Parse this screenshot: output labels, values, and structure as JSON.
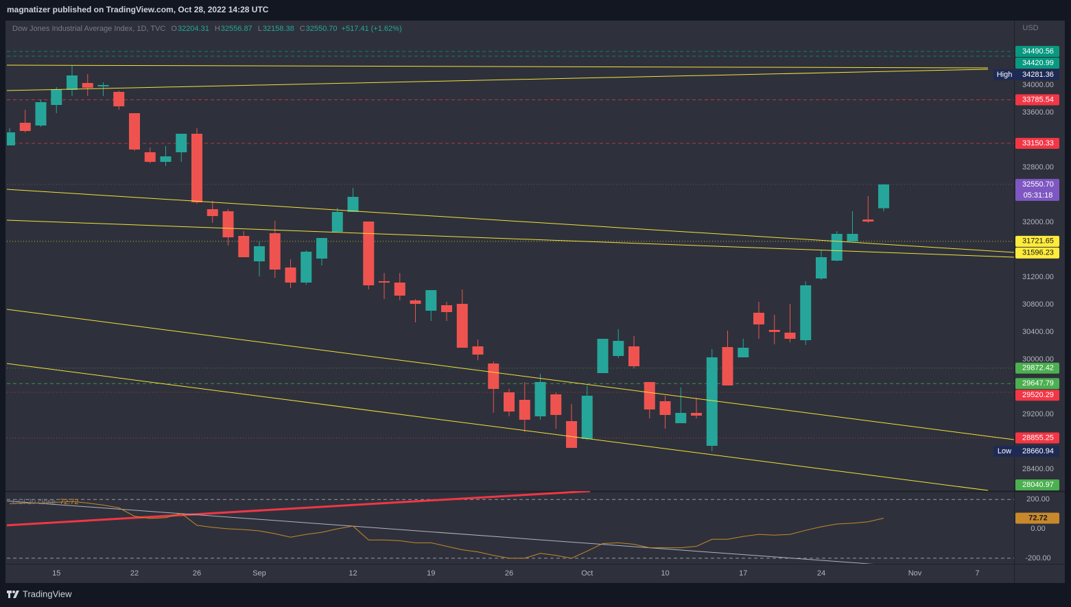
{
  "header": "magnatizer published on TradingView.com, Oct 28, 2022 14:28 UTC",
  "footer": "TradingView",
  "chart_data": [
    {
      "type": "candlestick",
      "title": "Dow Jones Industrial Average Index, 1D, TVC",
      "currency": "USD",
      "legend": [
        {
          "key": "O",
          "value": 32204.31
        },
        {
          "key": "H",
          "value": 32556.87
        },
        {
          "key": "L",
          "value": 32158.38
        },
        {
          "key": "C",
          "value": 32550.7,
          "label": "32550.70"
        }
      ],
      "change": {
        "value": 517.41,
        "label": "+517.41 (+1.62%)"
      },
      "categories": [
        null,
        null,
        null,
        "15",
        null,
        null,
        null,
        null,
        "22",
        null,
        null,
        null,
        "26",
        null,
        null,
        null,
        "Sep",
        null,
        null,
        null,
        null,
        null,
        "12",
        null,
        null,
        null,
        null,
        "19",
        null,
        null,
        null,
        null,
        "26",
        null,
        null,
        null,
        null,
        "Oct",
        null,
        null,
        null,
        null,
        "10",
        null,
        null,
        null,
        null,
        "17",
        null,
        null,
        null,
        null,
        "24",
        null,
        null,
        null,
        null,
        null,
        "Nov",
        null,
        null,
        null,
        "7"
      ],
      "open": [
        33120,
        33450,
        33410,
        33710,
        33930,
        34030,
        33980,
        33900,
        33590,
        33020,
        32880,
        33020,
        33290,
        32190,
        32160,
        31800,
        31430,
        31840,
        31340,
        31120,
        31470,
        31860,
        32150,
        32010,
        31140,
        31120,
        30860,
        30710,
        30790,
        30810,
        30190,
        29940,
        29520,
        29410,
        29170,
        29490,
        29100,
        28840,
        29800,
        30050,
        30190,
        29670,
        29390,
        29070,
        29220,
        28740,
        30180,
        30030,
        30680,
        30430,
        30390,
        30280,
        31180,
        31440,
        31720,
        32040,
        32204.31,
        null,
        null,
        null,
        null,
        null,
        null
      ],
      "high": [
        33370,
        33640,
        33790,
        33970,
        34281.36,
        34160,
        34040,
        33920,
        33590,
        33090,
        33110,
        33290,
        33370,
        32310,
        32190,
        31870,
        31720,
        32020,
        31460,
        31590,
        31770,
        32210,
        32500,
        32010,
        31260,
        31260,
        30880,
        31010,
        30840,
        31020,
        30290,
        29970,
        29570,
        29670,
        29790,
        29520,
        29350,
        29620,
        30300,
        30440,
        30340,
        29670,
        29470,
        29590,
        29440,
        30150,
        30420,
        30300,
        30840,
        30650,
        30810,
        31140,
        31590,
        31870,
        32160,
        32380,
        32556.87,
        null,
        null,
        null,
        null,
        null,
        null
      ],
      "low": [
        33120,
        33310,
        33390,
        33590,
        33840,
        33840,
        33840,
        33640,
        33040,
        32860,
        32820,
        32880,
        32270,
        31990,
        31660,
        31490,
        31210,
        31190,
        31040,
        31090,
        31370,
        31860,
        32150,
        31020,
        30880,
        30860,
        30540,
        30560,
        30560,
        30170,
        29990,
        29220,
        29170,
        28940,
        29120,
        28990,
        28710,
        28820,
        29800,
        30020,
        29870,
        29140,
        28990,
        29070,
        29140,
        28660.94,
        29620,
        30030,
        30300,
        30220,
        30250,
        30210,
        31160,
        31430,
        31720,
        31990,
        32158.38,
        null,
        null,
        null,
        null,
        null,
        null
      ],
      "close": [
        33310,
        33330,
        33750,
        33930,
        34140,
        33960,
        34000,
        33690,
        33060,
        32880,
        32960,
        33290,
        32290,
        32090,
        31780,
        31490,
        31650,
        31310,
        31120,
        31570,
        31770,
        32150,
        32370,
        31080,
        31120,
        30930,
        30810,
        31010,
        30690,
        30170,
        30070,
        29570,
        29240,
        29120,
        29670,
        29190,
        28710,
        29470,
        30300,
        30270,
        29900,
        29270,
        29190,
        29220,
        29180,
        30030,
        29620,
        30170,
        30510,
        30400,
        30300,
        31080,
        31490,
        31830,
        31830,
        32010,
        32550.7,
        null,
        null,
        null,
        null,
        null,
        null
      ],
      "up_color": "#26a69a",
      "down_color": "#ef5350",
      "ylim": [
        28080,
        34940
      ],
      "yticks": [
        {
          "value": 28400,
          "label": "28400.00"
        },
        {
          "value": 29200,
          "label": "29200.00"
        },
        {
          "value": 30000,
          "label": "30000.00"
        },
        {
          "value": 30400,
          "label": "30400.00"
        },
        {
          "value": 30800,
          "label": "30800.00"
        },
        {
          "value": 31200,
          "label": "31200.00"
        },
        {
          "value": 32000,
          "label": "32000.00"
        },
        {
          "value": 32800,
          "label": "32800.00"
        },
        {
          "value": 33600,
          "label": "33600.00"
        },
        {
          "value": 34000,
          "label": "34000.00"
        }
      ],
      "levels": [
        {
          "value": 34490.56,
          "color": "#089981",
          "line": "dashed"
        },
        {
          "value": 34420.99,
          "color": "#089981",
          "line": "dashed"
        },
        {
          "value": 34281.36,
          "color": "#1e2a54",
          "line": "none",
          "tag": "High"
        },
        {
          "value": 33785.54,
          "color": "#f23645",
          "line": "dashed"
        },
        {
          "value": 33150.33,
          "color": "#f23645",
          "line": "dashed"
        },
        {
          "value": 32550.7,
          "label": "32550.70",
          "color": "#7e57c2",
          "line": "dotted",
          "countdown": "05:31:18"
        },
        {
          "value": 31721.65,
          "color": "#ffeb3b",
          "text_color": "#131722",
          "line": "dotted"
        },
        {
          "value": 31596.23,
          "color": "#ffeb3b",
          "text_color": "#131722",
          "line": "none"
        },
        {
          "value": 29872.42,
          "color": "#4caf50",
          "line": "dotted"
        },
        {
          "value": 29647.79,
          "color": "#4caf50",
          "line": "dashed"
        },
        {
          "value": 29520.29,
          "color": "#f23645",
          "line": "dotted"
        },
        {
          "value": 28855.25,
          "color": "#f23645",
          "line": "dotted"
        },
        {
          "value": 28660.94,
          "color": "#1e2a54",
          "line": "none",
          "tag": "Low"
        },
        {
          "value": 28040.97,
          "color": "#4caf50",
          "line": "none"
        }
      ],
      "trendlines": [
        {
          "x": [
            -0.18,
            62.68
          ],
          "y": [
            34290,
            34250
          ],
          "color": "#f5e23b"
        },
        {
          "x": [
            -0.18,
            62.68
          ],
          "y": [
            33920,
            34230
          ],
          "color": "#f5e23b"
        },
        {
          "x": [
            -0.18,
            64.35
          ],
          "y": [
            32480,
            31560
          ],
          "color": "#f5e23b"
        },
        {
          "x": [
            -0.18,
            64.35
          ],
          "y": [
            32030,
            31490
          ],
          "color": "#f5e23b"
        },
        {
          "x": [
            -0.18,
            64.35
          ],
          "y": [
            30730,
            28830
          ],
          "color": "#f5e23b"
        },
        {
          "x": [
            -0.18,
            62.68
          ],
          "y": [
            29940,
            28090
          ],
          "color": "#f5e23b"
        }
      ]
    },
    {
      "type": "line",
      "name": "CCI 20 close",
      "color": "#c8892c",
      "values": [
        171,
        176,
        176,
        181,
        186,
        176,
        162,
        143,
        86,
        71,
        76,
        105,
        24,
        10,
        0,
        -5,
        -14,
        -33,
        -57,
        -38,
        -24,
        0,
        19,
        -76,
        -76,
        -81,
        -95,
        -95,
        -119,
        -143,
        -157,
        -181,
        -200,
        -200,
        -167,
        -181,
        -200,
        -152,
        -100,
        -95,
        -105,
        -129,
        -129,
        -129,
        -119,
        -71,
        -71,
        -52,
        -38,
        -43,
        -38,
        -10,
        14,
        33,
        38,
        48,
        72.72,
        null,
        null,
        null,
        null,
        null,
        null
      ],
      "ylim": [
        -238,
        257
      ],
      "yticks": [
        {
          "value": 200,
          "label": "200.00"
        },
        {
          "value": 0,
          "label": "0.00"
        },
        {
          "value": -200,
          "label": "-200.00"
        }
      ],
      "bands": [
        200,
        -200
      ],
      "trendlines": [
        {
          "x": [
            -0.18,
            37.2
          ],
          "y": [
            24,
            257
          ],
          "color": "#f23645",
          "width": 3
        },
        {
          "x": [
            -0.18,
            56.35
          ],
          "y": [
            190,
            -248
          ],
          "color": "#b2b5be",
          "width": 1
        }
      ]
    }
  ]
}
